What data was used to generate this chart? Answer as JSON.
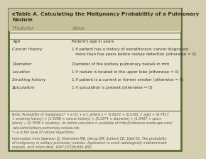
{
  "title": "eTable A. Calculating the Malignancy Probability of a Pulmonary\nNodule",
  "header": [
    "Predictor",
    "Value"
  ],
  "rows": [
    [
      "Age",
      "Patient's age in years"
    ],
    [
      "Cancer history",
      "1 if patient has a history of extrathoracic cancer diagnosed\n   more than five years before nodule detection (otherwise = 0)"
    ],
    [
      "Diameter",
      "Diameter of the solitary pulmonary nodule in mm"
    ],
    [
      "Location",
      "1 if nodule is located in the upper lobe (otherwise = 0)"
    ],
    [
      "Smoking history",
      "1 if patient is a current or former smoker (otherwise = 0)"
    ],
    [
      "Spiculation",
      "1 if spiculation is present (otherwise = 0)"
    ]
  ],
  "footnote1": "Note: Probability of malignancy* = eˣ/(1 + eˣ), where x = -6.8272 + (0.0391 × age) + (0.7917\n× smoking history) + (1.3388 × cancer history) + (0.1274 × diameter) + (1.0407 × spicu-\nlation) + (0.7838 × location). An online calculator is available at http://reference.medscape.com/\ncalculator/solitary-pulmonary-nodule-risk.",
  "footnote2": "*—e is the base of natural logarithms.",
  "footnote3": "Information from Swensen SJ, Silverstein MD, Ilstrup DM, Schleck CD, Edell ES. The probability\nof malignancy in solitary pulmonary nodules. Application to small radiologically indeterminate\nnodules. Arch Intern Med. 1997;157(8):849–855.",
  "bg_color": "#d4cdb0",
  "border_color": "#5a6e3a",
  "title_bg": "#c8c09a",
  "header_color": "#7a6e50",
  "text_color": "#3a3020",
  "footnote_color": "#5a5040",
  "inner_bg": "#e8e4d0"
}
